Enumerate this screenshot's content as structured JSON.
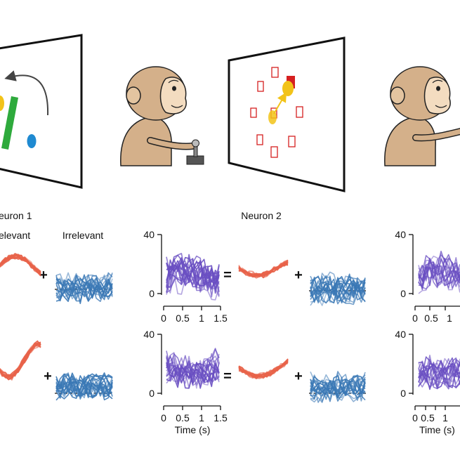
{
  "labels": {
    "neuron1": "euron 1",
    "neuron2": "Neuron 2",
    "relevant": "elevant",
    "irrelevant": "Irrelevant",
    "time_label": "Time (s)",
    "time_label_right": "Time (s)",
    "plus": "+",
    "equals": "="
  },
  "axes": {
    "y_ticks": [
      "0",
      "40"
    ],
    "x_ticks": [
      "0",
      "0.5",
      "1",
      "1.5"
    ],
    "x_ticks_right": [
      "0",
      "0.5",
      "1"
    ]
  },
  "colors": {
    "relevant": "#e8634a",
    "irrelevant": "#3a78b5",
    "neuron": "#6a4fc2",
    "monkey_fur": "#d4b08a",
    "monkey_face": "#f3dcc0",
    "target": "#d62020",
    "cursor": "#f2c318",
    "green_shape": "#2eaa3c",
    "blue_shape": "#1f8ad1"
  },
  "icons": [
    "monkey-icon",
    "joystick-icon",
    "screen-icon"
  ]
}
